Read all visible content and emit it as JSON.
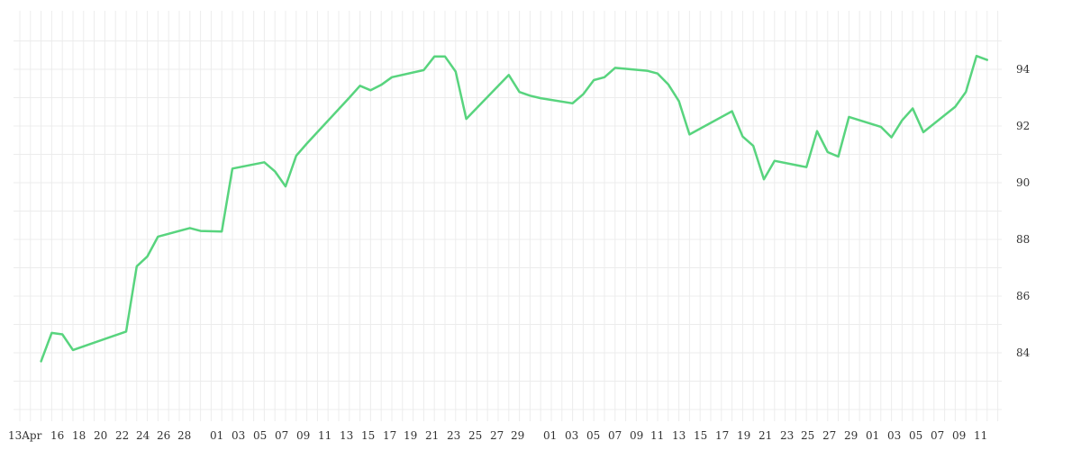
{
  "chart_data": {
    "type": "line",
    "title": "",
    "xlabel": "",
    "ylabel": "",
    "y_axis_position": "right",
    "grid": true,
    "ylim": [
      82,
      95
    ],
    "yticks": [
      84,
      86,
      88,
      90,
      92,
      94
    ],
    "x_tick_labels": [
      "13Apr",
      "16",
      "18",
      "20",
      "22",
      "24",
      "26",
      "28",
      "01",
      "03",
      "05",
      "07",
      "09",
      "11",
      "13",
      "15",
      "17",
      "19",
      "21",
      "23",
      "25",
      "27",
      "29",
      "01",
      "03",
      "05",
      "07",
      "09",
      "11",
      "13",
      "15",
      "17",
      "19",
      "21",
      "23",
      "25",
      "27",
      "29",
      "01",
      "03",
      "05",
      "07",
      "09",
      "11"
    ],
    "line_color": "#58d47e",
    "series": [
      {
        "points": [
          [
            "2020-04-15",
            83.7
          ],
          [
            "2020-04-16",
            84.7
          ],
          [
            "2020-04-17",
            84.65
          ],
          [
            "2020-04-18",
            84.1
          ],
          [
            "2020-04-23",
            84.75
          ],
          [
            "2020-04-24",
            87.05
          ],
          [
            "2020-04-25",
            87.4
          ],
          [
            "2020-04-26",
            88.1
          ],
          [
            "2020-04-29",
            88.4
          ],
          [
            "2020-04-30",
            88.3
          ],
          [
            "2020-05-02",
            88.28
          ],
          [
            "2020-05-03",
            90.5
          ],
          [
            "2020-05-06",
            90.72
          ],
          [
            "2020-05-07",
            90.4
          ],
          [
            "2020-05-08",
            89.87
          ],
          [
            "2020-05-09",
            90.95
          ],
          [
            "2020-05-10",
            91.38
          ],
          [
            "2020-05-14",
            93.0
          ],
          [
            "2020-05-15",
            93.42
          ],
          [
            "2020-05-16",
            93.26
          ],
          [
            "2020-05-17",
            93.45
          ],
          [
            "2020-05-18",
            93.72
          ],
          [
            "2020-05-21",
            93.97
          ],
          [
            "2020-05-22",
            94.45
          ],
          [
            "2020-05-23",
            94.45
          ],
          [
            "2020-05-24",
            93.92
          ],
          [
            "2020-05-25",
            92.25
          ],
          [
            "2020-05-29",
            93.8
          ],
          [
            "2020-05-30",
            93.2
          ],
          [
            "2020-05-31",
            93.07
          ],
          [
            "2020-06-01",
            92.98
          ],
          [
            "2020-06-04",
            92.8
          ],
          [
            "2020-06-05",
            93.12
          ],
          [
            "2020-06-06",
            93.62
          ],
          [
            "2020-06-07",
            93.72
          ],
          [
            "2020-06-08",
            94.05
          ],
          [
            "2020-06-11",
            93.95
          ],
          [
            "2020-06-12",
            93.85
          ],
          [
            "2020-06-13",
            93.47
          ],
          [
            "2020-06-14",
            92.88
          ],
          [
            "2020-06-15",
            91.7
          ],
          [
            "2020-06-19",
            92.52
          ],
          [
            "2020-06-20",
            91.63
          ],
          [
            "2020-06-21",
            91.3
          ],
          [
            "2020-06-22",
            90.12
          ],
          [
            "2020-06-23",
            90.77
          ],
          [
            "2020-06-26",
            90.55
          ],
          [
            "2020-06-27",
            91.82
          ],
          [
            "2020-06-28",
            91.08
          ],
          [
            "2020-06-29",
            90.92
          ],
          [
            "2020-06-30",
            92.32
          ],
          [
            "2020-07-03",
            91.97
          ],
          [
            "2020-07-04",
            91.6
          ],
          [
            "2020-07-05",
            92.2
          ],
          [
            "2020-07-06",
            92.62
          ],
          [
            "2020-07-07",
            91.78
          ],
          [
            "2020-07-10",
            92.68
          ],
          [
            "2020-07-11",
            93.2
          ],
          [
            "2020-07-12",
            94.47
          ],
          [
            "2020-07-13",
            94.33
          ]
        ]
      }
    ]
  }
}
